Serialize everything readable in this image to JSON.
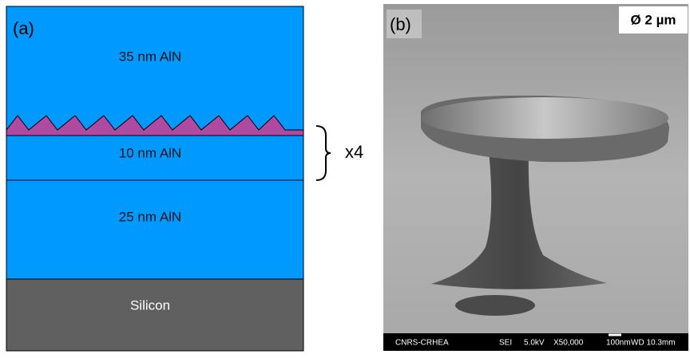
{
  "panel_a": {
    "label": "(a)",
    "layers": [
      "35 nm AlN",
      "10 nm AlN",
      "25 nm AlN",
      "Silicon"
    ],
    "repeat": "x4"
  },
  "panel_b": {
    "label": "(b)",
    "scale": "Ø 2 µm",
    "footer": [
      "CNRS-CRHEA",
      "SEI",
      "5.0kV",
      "X50,000",
      "100nm",
      "WD 10.3mm"
    ]
  }
}
